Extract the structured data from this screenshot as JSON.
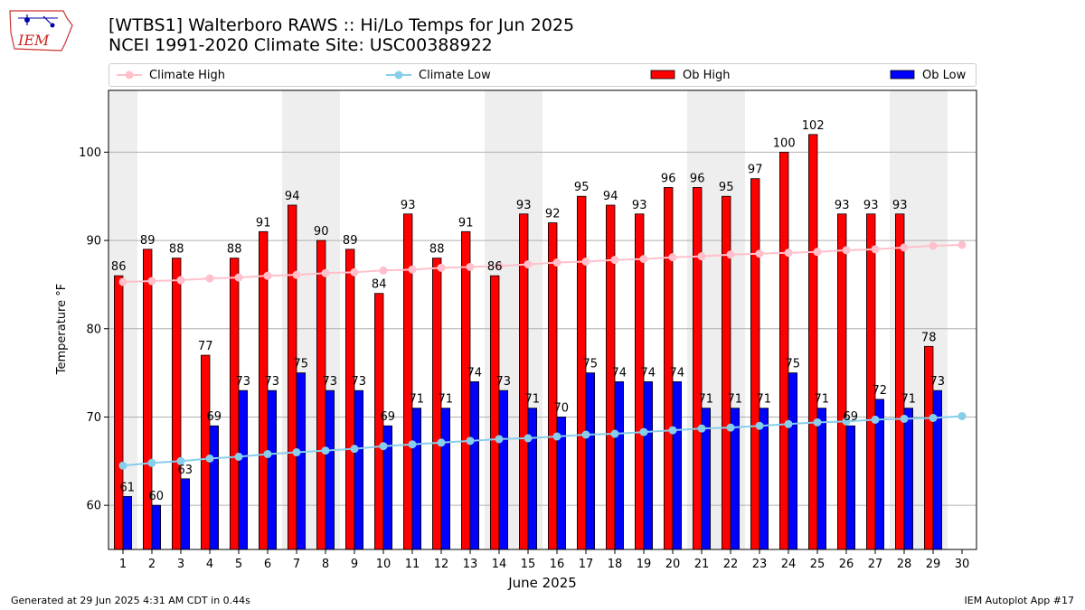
{
  "title_line1": "[WTBS1] Walterboro RAWS :: Hi/Lo Temps for Jun 2025",
  "title_line2": "NCEI 1991-2020 Climate Site: USC00388922",
  "logo_text": "IEM",
  "footer_left": "Generated at 29 Jun 2025 4:31 AM CDT in 0.44s",
  "footer_right": "IEM Autoplot App #17",
  "colors": {
    "ob_high": "#ff0000",
    "ob_low": "#0000ff",
    "climate_high": "#ffc0cb",
    "climate_low": "#87ceeb",
    "weekend_band": "#eeeeee",
    "grid": "#b0b0b0"
  },
  "chart_data": {
    "type": "bar",
    "xlabel": "June 2025",
    "ylabel": "Temperature °F",
    "ylim": [
      55,
      107
    ],
    "yticks": [
      60,
      70,
      80,
      90,
      100
    ],
    "grid": "horizontal",
    "legend_position": "top",
    "categories": [
      1,
      2,
      3,
      4,
      5,
      6,
      7,
      8,
      9,
      10,
      11,
      12,
      13,
      14,
      15,
      16,
      17,
      18,
      19,
      20,
      21,
      22,
      23,
      24,
      25,
      26,
      27,
      28,
      29,
      30
    ],
    "weekend_days": [
      1,
      7,
      8,
      14,
      15,
      21,
      22,
      28,
      29
    ],
    "series": [
      {
        "name": "Climate High",
        "kind": "line",
        "values": [
          85.3,
          85.4,
          85.5,
          85.7,
          85.8,
          86.0,
          86.1,
          86.3,
          86.4,
          86.6,
          86.7,
          86.9,
          87.0,
          87.1,
          87.3,
          87.5,
          87.6,
          87.8,
          87.9,
          88.1,
          88.2,
          88.4,
          88.5,
          88.6,
          88.7,
          88.9,
          89.0,
          89.2,
          89.4,
          89.5
        ]
      },
      {
        "name": "Climate Low",
        "kind": "line",
        "values": [
          64.5,
          64.8,
          65.0,
          65.3,
          65.5,
          65.8,
          66.0,
          66.2,
          66.4,
          66.7,
          66.9,
          67.1,
          67.3,
          67.5,
          67.6,
          67.8,
          68.0,
          68.1,
          68.3,
          68.5,
          68.7,
          68.8,
          69.0,
          69.2,
          69.4,
          69.5,
          69.7,
          69.8,
          69.9,
          70.1
        ]
      },
      {
        "name": "Ob High",
        "kind": "bar",
        "values": [
          86,
          89,
          88,
          77,
          88,
          91,
          94,
          90,
          89,
          84,
          93,
          88,
          91,
          86,
          93,
          92,
          95,
          94,
          93,
          96,
          96,
          95,
          97,
          100,
          102,
          93,
          93,
          93,
          78,
          null
        ]
      },
      {
        "name": "Ob Low",
        "kind": "bar",
        "values": [
          61,
          60,
          63,
          69,
          73,
          73,
          75,
          73,
          73,
          69,
          71,
          71,
          74,
          73,
          71,
          70,
          75,
          74,
          74,
          74,
          71,
          71,
          71,
          75,
          71,
          69,
          72,
          71,
          73,
          null
        ]
      }
    ]
  }
}
